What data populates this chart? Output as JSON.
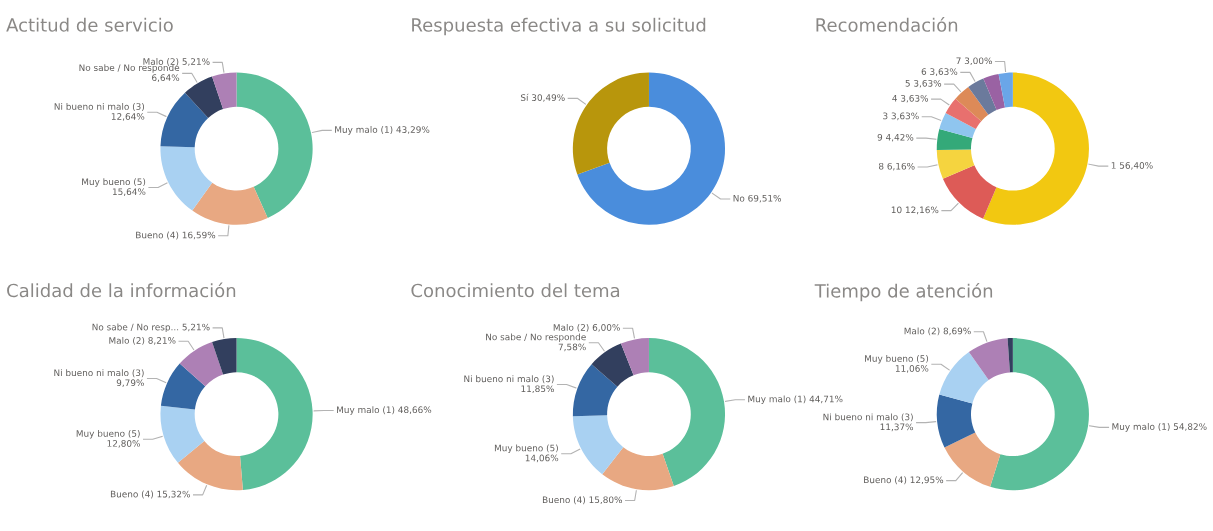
{
  "chart_data": [
    {
      "type": "donut",
      "title": "Actitud de servicio",
      "categories": [
        "Muy malo (1)",
        "Bueno (4)",
        "Muy bueno (5)",
        "Ni bueno ni malo (3)",
        "No sabe / No responde",
        "Malo (2)"
      ],
      "values": [
        43.29,
        16.59,
        15.64,
        12.64,
        6.64,
        5.21
      ],
      "value_labels": [
        "43,29%",
        "16,59%",
        "15,64%",
        "12,64%",
        "6,64%",
        "5,21%"
      ],
      "colors": [
        "#5bbf9a",
        "#e8a882",
        "#a9d1f2",
        "#3467a3",
        "#323f5e",
        "#ad80b5"
      ],
      "legend": false
    },
    {
      "type": "donut",
      "title": "Respuesta efectiva a su solicitud",
      "categories": [
        "No",
        "Sí"
      ],
      "values": [
        69.51,
        30.49
      ],
      "value_labels": [
        "69,51%",
        "30,49%"
      ],
      "colors": [
        "#4a8ddc",
        "#b8960c"
      ],
      "legend": false
    },
    {
      "type": "donut",
      "title": "Recomendación",
      "categories": [
        "1",
        "10",
        "8",
        "9",
        "3",
        "4",
        "5",
        "6",
        null,
        "7"
      ],
      "values": [
        56.4,
        12.16,
        6.16,
        4.42,
        3.63,
        3.63,
        3.63,
        3.63,
        3.34,
        3.0
      ],
      "value_labels": [
        "56,40%",
        "12,16%",
        "6,16%",
        "4,42%",
        "3,63%",
        "3,63%",
        "3,63%",
        "3,63%",
        null,
        "3,00%"
      ],
      "colors": [
        "#f2c811",
        "#dd5b57",
        "#f5d43f",
        "#34a979",
        "#8fc5ef",
        "#e8706e",
        "#dd8a58",
        "#6b7a9c",
        "#9a62a3",
        "#6aa6e8"
      ],
      "legend": false
    },
    {
      "type": "donut",
      "title": "Calidad de la información",
      "categories": [
        "Muy malo (1)",
        "Bueno (4)",
        "Muy bueno (5)",
        "Ni bueno ni malo (3)",
        "Malo (2)",
        "No sabe / No resp..."
      ],
      "values": [
        48.66,
        15.32,
        12.8,
        9.79,
        8.21,
        5.21
      ],
      "value_labels": [
        "48,66%",
        "15,32%",
        "12,80%",
        "9,79%",
        "8,21%",
        "5,21%"
      ],
      "colors": [
        "#5bbf9a",
        "#e8a882",
        "#a9d1f2",
        "#3467a3",
        "#ad80b5",
        "#323f5e"
      ],
      "legend": false
    },
    {
      "type": "donut",
      "title": "Conocimiento del tema",
      "categories": [
        "Muy malo (1)",
        "Bueno (4)",
        "Muy bueno (5)",
        "Ni bueno ni malo (3)",
        "No sabe / No responde",
        "Malo (2)"
      ],
      "values": [
        44.71,
        15.8,
        14.06,
        11.85,
        7.58,
        6.0
      ],
      "value_labels": [
        "44,71%",
        "15,80%",
        "14,06%",
        "11,85%",
        "7,58%",
        "6,00%"
      ],
      "colors": [
        "#5bbf9a",
        "#e8a882",
        "#a9d1f2",
        "#3467a3",
        "#323f5e",
        "#ad80b5"
      ],
      "legend": false
    },
    {
      "type": "donut",
      "title": "Tiempo de atención",
      "categories": [
        "Muy malo (1)",
        "Bueno (4)",
        "Ni bueno ni malo (3)",
        "Muy bueno (5)",
        "Malo (2)",
        null
      ],
      "values": [
        54.82,
        12.95,
        11.37,
        11.06,
        8.69,
        1.11
      ],
      "value_labels": [
        "54,82%",
        "12,95%",
        "11,37%",
        "11,06%",
        "8,69%",
        null
      ],
      "colors": [
        "#5bbf9a",
        "#e8a882",
        "#3467a3",
        "#a9d1f2",
        "#ad80b5",
        "#323f5e"
      ],
      "legend": false
    }
  ]
}
